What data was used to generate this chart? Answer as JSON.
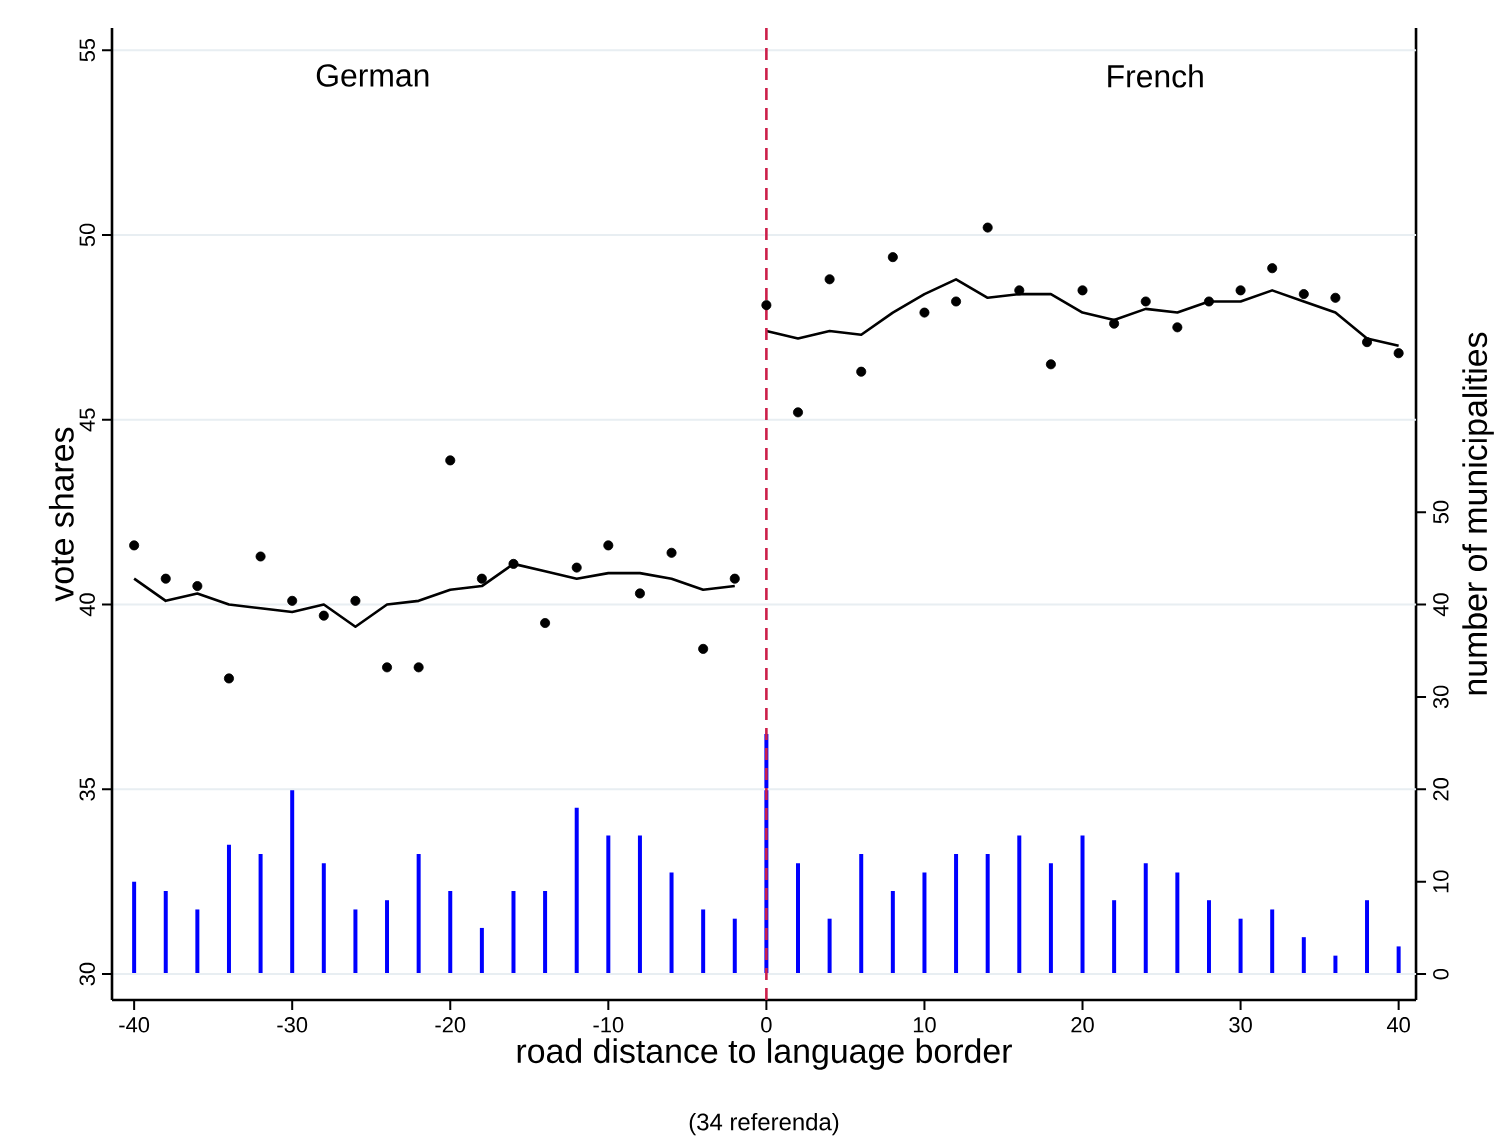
{
  "chart_data": {
    "type": "scatter",
    "xlabel": "road distance to language border",
    "ylabel": "vote shares",
    "y2label": "number of municipalities",
    "annotations": [
      "German",
      "French",
      "(34 referenda)"
    ],
    "xlim": [
      -41.4,
      41.1
    ],
    "xticks": [
      -40,
      -30,
      -20,
      -10,
      0,
      10,
      20,
      30,
      40
    ],
    "ylim": [
      29.3,
      55.6
    ],
    "yticks": [
      30,
      35,
      40,
      45,
      50,
      55
    ],
    "y2lim": [
      -2.8,
      102.4
    ],
    "y2ticks": [
      0,
      10,
      20,
      30,
      40,
      50
    ],
    "grid": "y",
    "ref_lines": [
      {
        "axis": "x",
        "value": 0,
        "color": "#cc1f4a",
        "line_style": "dashed"
      }
    ],
    "series": [
      {
        "type": "bar",
        "axis": "y2",
        "color": "#0000ff",
        "x": [
          -40,
          -38,
          -36,
          -34,
          -32,
          -30,
          -28,
          -26,
          -24,
          -22,
          -20,
          -18,
          -16,
          -14,
          -12,
          -10,
          -8,
          -6,
          -4,
          -2,
          0,
          2,
          4,
          6,
          8,
          10,
          12,
          14,
          16,
          18,
          20,
          22,
          24,
          26,
          28,
          30,
          32,
          34,
          36,
          38,
          40
        ],
        "values": [
          10,
          9,
          7,
          14,
          13,
          20,
          12,
          7,
          8,
          13,
          9,
          5,
          9,
          9,
          18,
          15,
          15,
          11,
          7,
          6,
          26,
          12,
          6,
          13,
          9,
          11,
          13,
          13,
          15,
          12,
          15,
          8,
          12,
          11,
          8,
          6,
          7,
          4,
          2,
          8,
          3
        ]
      },
      {
        "color": "#000000",
        "marker": "circle",
        "x": [
          -40,
          -38,
          -36,
          -34,
          -32,
          -30,
          -28,
          -26,
          -24,
          -22,
          -20,
          -18,
          -16,
          -14,
          -12,
          -10,
          -8,
          -6,
          -4,
          -2,
          0,
          2,
          4,
          6,
          8,
          10,
          12,
          14,
          16,
          18,
          20,
          22,
          24,
          26,
          28,
          30,
          32,
          34,
          36,
          38,
          40
        ],
        "values": [
          41.6,
          40.7,
          40.5,
          38.0,
          41.3,
          40.1,
          39.7,
          40.1,
          38.3,
          38.3,
          43.9,
          40.7,
          41.1,
          39.5,
          41.0,
          41.6,
          40.3,
          41.4,
          38.8,
          40.7,
          48.1,
          45.2,
          48.8,
          46.3,
          49.4,
          47.9,
          48.2,
          50.2,
          48.5,
          46.5,
          48.5,
          47.6,
          48.2,
          47.5,
          48.2,
          48.5,
          49.1,
          48.4,
          48.3,
          47.1,
          46.8
        ]
      },
      {
        "type": "line",
        "color": "#000000",
        "marker": "none",
        "line_style": "solid",
        "x": [
          -40,
          -38,
          -36,
          -34,
          -32,
          -30,
          -28,
          -26,
          -24,
          -22,
          -20,
          -18,
          -16,
          -14,
          -12,
          -10,
          -8,
          -6,
          -4,
          -2
        ],
        "values": [
          40.7,
          40.1,
          40.3,
          40.0,
          39.9,
          39.8,
          40.0,
          39.4,
          40.0,
          40.1,
          40.4,
          40.5,
          41.1,
          40.9,
          40.7,
          40.85,
          40.85,
          40.7,
          40.4,
          40.5
        ]
      },
      {
        "type": "line",
        "color": "#000000",
        "marker": "none",
        "line_style": "solid",
        "x": [
          0,
          2,
          4,
          6,
          8,
          10,
          12,
          14,
          16,
          18,
          20,
          22,
          24,
          26,
          28,
          30,
          32,
          34,
          36,
          38,
          40
        ],
        "values": [
          47.4,
          47.2,
          47.4,
          47.3,
          47.9,
          48.4,
          48.8,
          48.3,
          48.4,
          48.4,
          47.9,
          47.7,
          48.0,
          47.9,
          48.2,
          48.2,
          48.5,
          48.2,
          47.9,
          47.2,
          47.0
        ]
      }
    ]
  }
}
